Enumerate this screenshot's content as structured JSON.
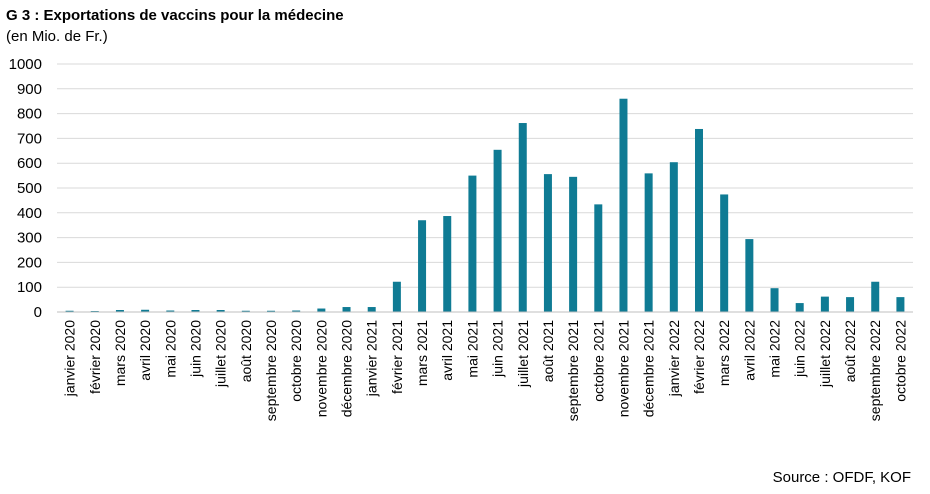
{
  "header": {
    "title": "G 3 : Exportations de vaccins pour la médecine",
    "subtitle": "(en Mio. de Fr.)"
  },
  "footer": {
    "source": "Source : OFDF, KOF"
  },
  "chart_data": {
    "type": "bar",
    "title": "G 3 : Exportations de vaccins pour la médecine",
    "subtitle": "(en Mio. de Fr.)",
    "xlabel": "",
    "ylabel": "",
    "ylim": [
      0,
      1000
    ],
    "yticks": [
      0,
      100,
      200,
      300,
      400,
      500,
      600,
      700,
      800,
      900,
      1000
    ],
    "grid": true,
    "legend": "none",
    "bar_color": "#0f7b94",
    "categories": [
      "janvier 2020",
      "février 2020",
      "mars 2020",
      "avril 2020",
      "mai 2020",
      "juin 2020",
      "juillet 2020",
      "août 2020",
      "septembre 2020",
      "octobre 2020",
      "novembre 2020",
      "décembre 2020",
      "janvier 2021",
      "février 2021",
      "mars 2021",
      "avril 2021",
      "mai 2021",
      "juin 2021",
      "juillet 2021",
      "août 2021",
      "septembre 2021",
      "octobre 2021",
      "novembre 2021",
      "décembre 2021",
      "janvier 2022",
      "février 2022",
      "mars 2022",
      "avril 2022",
      "mai 2022",
      "juin 2022",
      "juillet 2022",
      "août 2022",
      "septembre 2022",
      "octobre 2022"
    ],
    "values": [
      5,
      4,
      8,
      9,
      6,
      8,
      8,
      5,
      5,
      6,
      14,
      20,
      20,
      122,
      370,
      387,
      550,
      654,
      762,
      556,
      545,
      434,
      860,
      559,
      604,
      738,
      474,
      294,
      96,
      36,
      62,
      60,
      122,
      60
    ]
  }
}
